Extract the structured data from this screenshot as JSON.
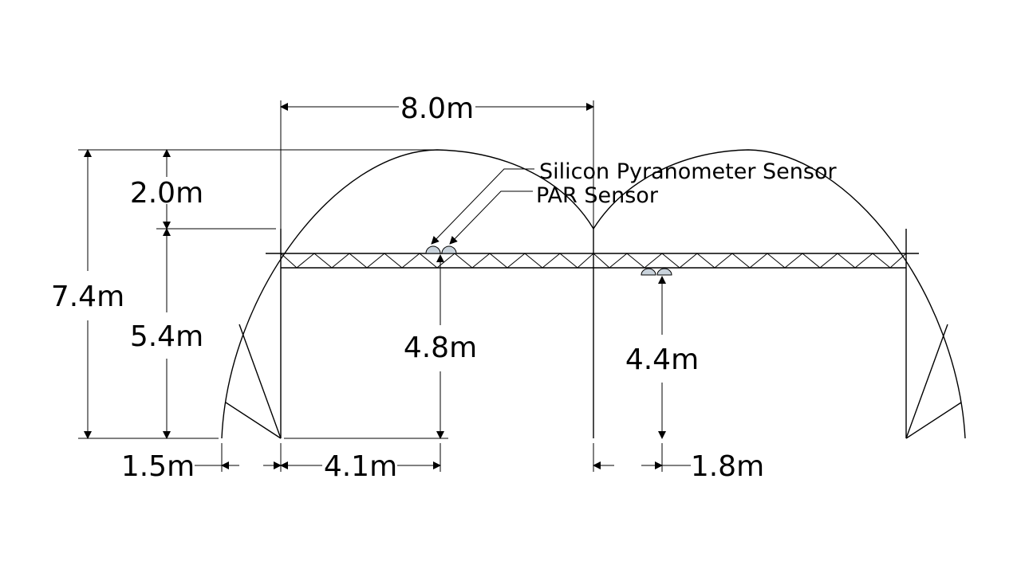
{
  "diagram": {
    "dimensions": {
      "span_width": "8.0m",
      "arch_rise": "2.0m",
      "total_height": "7.4m",
      "wall_height": "5.4m",
      "sensor_height_left": "4.8m",
      "sensor_height_right": "4.4m",
      "side_offset": "1.5m",
      "left_sensor_distance": "4.1m",
      "right_sensor_distance": "1.8m"
    },
    "labels": {
      "pyranometer": "Silicon Pyranometer Sensor",
      "par": "PAR Sensor"
    }
  }
}
